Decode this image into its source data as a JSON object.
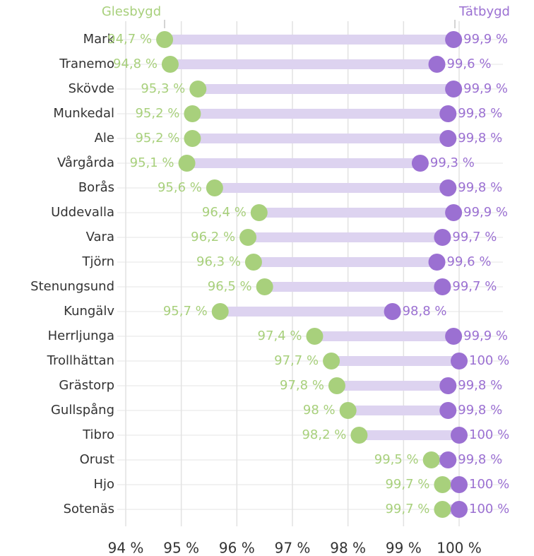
{
  "chart_data": {
    "type": "dumbbell",
    "categories": [
      "Mark",
      "Tranemo",
      "Skövde",
      "Munkedal",
      "Ale",
      "Vårgårda",
      "Borås",
      "Uddevalla",
      "Vara",
      "Tjörn",
      "Stenungsund",
      "Kungälv",
      "Herrljunga",
      "Trollhättan",
      "Grästorp",
      "Gullspång",
      "Tibro",
      "Orust",
      "Hjo",
      "Sotenäs"
    ],
    "series": [
      {
        "name": "Glesbygd",
        "color": "#a8d07c",
        "values": [
          94.7,
          94.8,
          95.3,
          95.2,
          95.2,
          95.1,
          95.6,
          96.4,
          96.2,
          96.3,
          96.5,
          95.7,
          97.4,
          97.7,
          97.8,
          98,
          98.2,
          99.5,
          99.7,
          99.7
        ],
        "value_labels": [
          "94,7 %",
          "94,8 %",
          "95,3 %",
          "95,2 %",
          "95,2 %",
          "95,1 %",
          "95,6 %",
          "96,4 %",
          "96,2 %",
          "96,3 %",
          "96,5 %",
          "95,7 %",
          "97,4 %",
          "97,7 %",
          "97,8 %",
          "98 %",
          "98,2 %",
          "99,5 %",
          "99,7 %",
          "99,7 %"
        ]
      },
      {
        "name": "Tätbygd",
        "color": "#9b70d2",
        "values": [
          99.9,
          99.6,
          99.9,
          99.8,
          99.8,
          99.3,
          99.8,
          99.9,
          99.7,
          99.6,
          99.7,
          98.8,
          99.9,
          100,
          99.8,
          99.8,
          100,
          99.8,
          100,
          100
        ],
        "value_labels": [
          "99,9 %",
          "99,6 %",
          "99,9 %",
          "99,8 %",
          "99,8 %",
          "99,3 %",
          "99,8 %",
          "99,9 %",
          "99,7 %",
          "99,6 %",
          "99,7 %",
          "98,8 %",
          "99,9 %",
          "100 %",
          "99,8 %",
          "99,8 %",
          "100 %",
          "99,8 %",
          "100 %",
          "100 %"
        ]
      }
    ],
    "bar_color": "#ddd3f0",
    "xlim": [
      94,
      100
    ],
    "xticks": [
      {
        "value": 94,
        "label": "94 %"
      },
      {
        "value": 95,
        "label": "95 %"
      },
      {
        "value": 96,
        "label": "96 %"
      },
      {
        "value": 97,
        "label": "97 %"
      },
      {
        "value": 98,
        "label": "98 %"
      },
      {
        "value": 99,
        "label": "99 %"
      },
      {
        "value": 100,
        "label": "100 %"
      }
    ],
    "grid": true
  }
}
